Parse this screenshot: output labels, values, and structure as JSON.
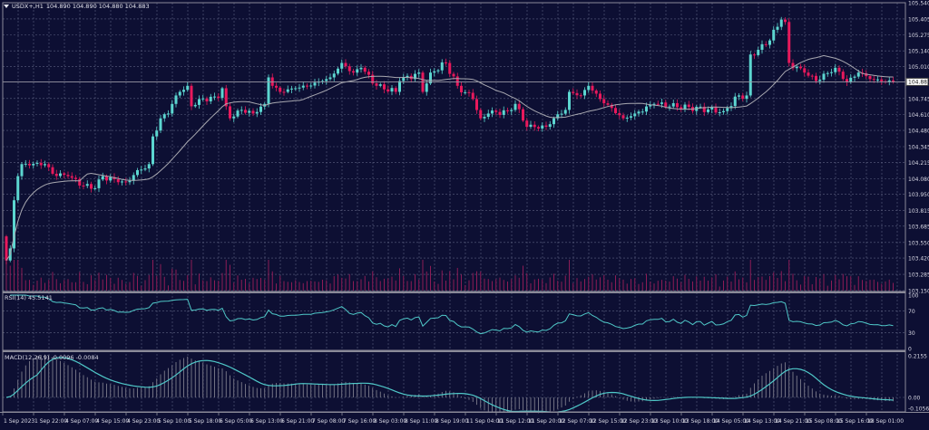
{
  "header": {
    "symbol_timeframe": "USDX+,H1",
    "ohlc": "104.890 104.890 104.880 104.883"
  },
  "current_price": "104.883",
  "price_axis": [
    "105.540",
    "105.405",
    "105.275",
    "105.140",
    "105.010",
    "104.745",
    "104.610",
    "104.480",
    "104.345",
    "104.215",
    "104.080",
    "103.950",
    "103.815",
    "103.685",
    "103.550",
    "103.420",
    "103.285",
    "103.150"
  ],
  "time_axis": [
    "1 Sep 2023",
    "1 Sep 22:00",
    "4 Sep 07:00",
    "4 Sep 15:00",
    "4 Sep 23:00",
    "5 Sep 10:00",
    "5 Sep 18:00",
    "6 Sep 05:00",
    "6 Sep 13:00",
    "6 Sep 21:00",
    "7 Sep 08:00",
    "7 Sep 16:00",
    "8 Sep 03:00",
    "8 Sep 11:00",
    "8 Sep 19:00",
    "11 Sep 04:00",
    "11 Sep 12:00",
    "11 Sep 20:00",
    "12 Sep 07:00",
    "12 Sep 15:00",
    "12 Sep 23:00",
    "13 Sep 10:00",
    "13 Sep 18:00",
    "14 Sep 05:00",
    "14 Sep 13:00",
    "14 Sep 21:00",
    "15 Sep 08:00",
    "15 Sep 16:00",
    "18 Sep 01:00"
  ],
  "rsi": {
    "label": "RSI(14) 45.5141",
    "axis": [
      "100",
      "70",
      "30",
      "0"
    ]
  },
  "macd": {
    "label": "MACD(12,26,9) -0.0096 -0.0084",
    "axis": [
      "0.2155",
      "0.00",
      "-0.1056"
    ]
  },
  "colors": {
    "background": "#0d0f33",
    "grid": "#5c6080",
    "up_candle": "#5cd6d0",
    "down_candle": "#e8195c",
    "moving_average": "#a8a8b0",
    "volume": "#8c1c56",
    "rsi_line": "#4fc8c8",
    "macd_histogram": "#8a8a96",
    "macd_signal": "#4fc8c8"
  },
  "chart_data": {
    "type": "candlestick",
    "timeframe": "H1",
    "ylim": [
      103.15,
      105.54
    ],
    "last_close": 104.883,
    "close_keypoints": [
      [
        0,
        103.4
      ],
      [
        1,
        103.5
      ],
      [
        2,
        103.9
      ],
      [
        3,
        104.1
      ],
      [
        4,
        104.2
      ],
      [
        10,
        104.2
      ],
      [
        12,
        104.12
      ],
      [
        16,
        104.1
      ],
      [
        20,
        104.02
      ],
      [
        23,
        104.0
      ],
      [
        25,
        104.1
      ],
      [
        29,
        104.05
      ],
      [
        31,
        104.05
      ],
      [
        34,
        104.15
      ],
      [
        37,
        104.2
      ],
      [
        38,
        104.43
      ],
      [
        40,
        104.58
      ],
      [
        42,
        104.62
      ],
      [
        44,
        104.77
      ],
      [
        45,
        104.8
      ],
      [
        47,
        104.85
      ],
      [
        48,
        104.68
      ],
      [
        50,
        104.74
      ],
      [
        55,
        104.75
      ],
      [
        56,
        104.83
      ],
      [
        57,
        104.68
      ],
      [
        58,
        104.58
      ],
      [
        61,
        104.65
      ],
      [
        64,
        104.62
      ],
      [
        67,
        104.7
      ],
      [
        68,
        104.92
      ],
      [
        69,
        104.85
      ],
      [
        71,
        104.8
      ],
      [
        75,
        104.83
      ],
      [
        78,
        104.85
      ],
      [
        82,
        104.89
      ],
      [
        84,
        104.92
      ],
      [
        87,
        105.04
      ],
      [
        90,
        104.96
      ],
      [
        92,
        105.0
      ],
      [
        96,
        104.85
      ],
      [
        101,
        104.8
      ],
      [
        102,
        104.89
      ],
      [
        107,
        104.96
      ],
      [
        108,
        104.8
      ],
      [
        110,
        104.96
      ],
      [
        114,
        105.04
      ],
      [
        117,
        104.85
      ],
      [
        121,
        104.74
      ],
      [
        123,
        104.58
      ],
      [
        125,
        104.62
      ],
      [
        130,
        104.64
      ],
      [
        132,
        104.7
      ],
      [
        135,
        104.51
      ],
      [
        140,
        104.51
      ],
      [
        142,
        104.58
      ],
      [
        145,
        104.65
      ],
      [
        146,
        104.8
      ],
      [
        149,
        104.77
      ],
      [
        151,
        104.85
      ],
      [
        154,
        104.74
      ],
      [
        160,
        104.58
      ],
      [
        163,
        104.62
      ],
      [
        168,
        104.7
      ],
      [
        186,
        104.64
      ],
      [
        190,
        104.77
      ],
      [
        192,
        104.77
      ],
      [
        193,
        105.11
      ],
      [
        197,
        105.19
      ],
      [
        200,
        105.34
      ],
      [
        201,
        105.4
      ],
      [
        202,
        105.38
      ],
      [
        203,
        105.04
      ],
      [
        207,
        104.96
      ],
      [
        210,
        104.89
      ],
      [
        215,
        105.0
      ],
      [
        218,
        104.88
      ],
      [
        221,
        104.96
      ],
      [
        225,
        104.9
      ],
      [
        230,
        104.883
      ]
    ],
    "first_open": 103.6,
    "moving_average_period": 20,
    "rsi_period": 14,
    "rsi_levels": [
      70,
      30
    ],
    "rsi_range": [
      0,
      100
    ],
    "macd_params": [
      12,
      26,
      9
    ],
    "macd_range": [
      -0.1056,
      0.2155
    ],
    "grid": true
  }
}
